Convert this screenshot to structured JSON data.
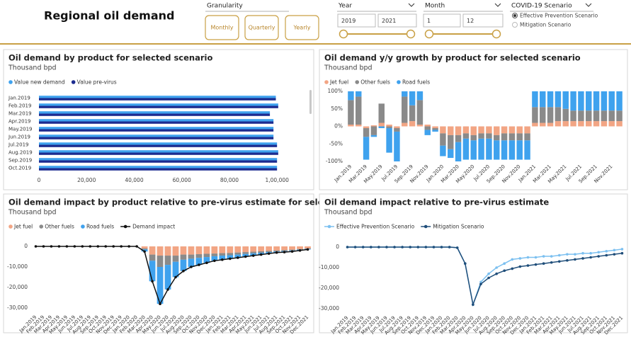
{
  "header": {
    "title": "Regional oil demand",
    "granularity": {
      "label": "Granularity",
      "buttons": [
        "Monthly",
        "Quarterly",
        "Yearly"
      ]
    },
    "year": {
      "label": "Year",
      "from": 2019,
      "to": 2021
    },
    "month": {
      "label": "Month",
      "from": 1,
      "to": 12
    },
    "scenario": {
      "label": "COVID-19 Scenario",
      "options": [
        "Effective Prevention Scenario",
        "Mitigation Scenario"
      ]
    }
  },
  "chart_data": [
    {
      "type": "bar",
      "title": "Oil demand by product for selected scenario",
      "subtitle": "Thousand bpd",
      "categories": [
        "Jan.2019",
        "Feb.2019",
        "Mar.2019",
        "Apr.2019",
        "May.2019",
        "Jun.2019",
        "Jul.2019",
        "Aug.2019",
        "Sep.2019",
        "Oct.2019"
      ],
      "series": [
        {
          "name": "Value new demand",
          "color": "#3fa2ee",
          "values": [
            99500,
            100500,
            97000,
            98500,
            98500,
            98500,
            100000,
            100500,
            100000,
            100000
          ]
        },
        {
          "name": "Value pre-virus",
          "color": "#1c2b8f",
          "values": [
            99500,
            100500,
            97000,
            98500,
            98500,
            98500,
            100000,
            100500,
            100000,
            100000
          ]
        }
      ],
      "xlim": [
        0,
        105000
      ],
      "xticks": [
        0,
        {
          "value": 20000,
          "label": "20,000"
        },
        {
          "value": 40000,
          "label": "40,000"
        },
        {
          "value": 60000,
          "label": "60,000"
        },
        {
          "value": 80000,
          "label": "80,000"
        },
        {
          "value": 100000,
          "label": "1,00,000"
        }
      ]
    },
    {
      "type": "column",
      "title": "Oil demand y/y growth by product for selected scenario",
      "subtitle": "Thousand bpd",
      "categories": [
        "Jan.2019",
        null,
        "Mar.2019",
        null,
        "May.2019",
        null,
        "Jul.2019",
        null,
        "Sep.2019",
        null,
        "Nov.2019",
        null,
        "Jan.2020",
        null,
        "Mar.2020",
        null,
        "May.2020",
        null,
        "Jul.2020",
        null,
        "Sep.2020",
        null,
        "Nov.2020",
        null,
        "Jan.2021",
        null,
        "Mar.2021",
        null,
        "May.2021",
        null,
        "Jul.2021",
        null,
        "Sep.2021",
        null,
        "Nov.2021",
        null
      ],
      "series": [
        {
          "name": "Jet fuel",
          "color": "#f2a584",
          "values": [
            5,
            5,
            -5,
            3,
            10,
            5,
            -5,
            10,
            15,
            5,
            5,
            -5,
            -20,
            -25,
            -25,
            -20,
            -25,
            -20,
            -20,
            -25,
            -20,
            -20,
            -20,
            -20,
            10,
            10,
            10,
            15,
            15,
            15,
            15,
            15,
            15,
            15,
            15,
            15
          ]
        },
        {
          "name": "Other fuels",
          "color": "#8a8a8a",
          "values": [
            70,
            80,
            -25,
            -25,
            55,
            -5,
            -10,
            75,
            45,
            70,
            -10,
            -5,
            -35,
            -40,
            -20,
            -15,
            -15,
            -15,
            -15,
            -15,
            -20,
            -20,
            -20,
            -20,
            45,
            45,
            45,
            40,
            35,
            30,
            30,
            30,
            30,
            30,
            30,
            30
          ]
        },
        {
          "name": "Road fuels",
          "color": "#3fa2ee",
          "values": [
            25,
            15,
            -65,
            -5,
            -5,
            -70,
            -85,
            15,
            40,
            25,
            -15,
            -5,
            -30,
            -25,
            -55,
            -60,
            -55,
            -60,
            -60,
            -55,
            -55,
            -55,
            -55,
            -55,
            45,
            45,
            45,
            45,
            50,
            55,
            55,
            55,
            55,
            55,
            55,
            55
          ]
        }
      ],
      "ylim": [
        -100,
        100
      ],
      "yticks": [
        {
          "value": -100,
          "label": "-100%"
        },
        {
          "value": -50,
          "label": "-50%"
        },
        {
          "value": 0,
          "label": "0%"
        },
        {
          "value": 50,
          "label": "50%"
        },
        {
          "value": 100,
          "label": "100%"
        }
      ]
    },
    {
      "type": "combo",
      "title": "Oil demand impact by product relative to pre-virus estimate for selected scenario",
      "subtitle": "Thousand bpd",
      "categories": [
        "Jan.2019",
        "Feb.2019",
        "Mar.2019",
        "Apr.2019",
        "May.2019",
        "Jun.2019",
        "Jul.2019",
        "Aug.2019",
        "Sep.2019",
        "Oct.2019",
        "Nov.2019",
        "Dec.2019",
        "Jan.2020",
        "Feb.2020",
        "Mar.2020",
        "Apr.2020",
        "May.2020",
        "Jun.2020",
        "Jul.2020",
        "Aug.2020",
        "Sep.2020",
        "Oct.2020",
        "Nov.2020",
        "Dec.2020",
        "Jan.2021",
        "Feb.2021",
        "Mar.2021",
        "Apr.2021",
        "May.2021",
        "Jun.2021",
        "Jul.2021",
        "Aug.2021",
        "Sep.2021",
        "Oct.2021",
        "Nov.2021",
        "Dec.2021"
      ],
      "series": [
        {
          "name": "Jet fuel",
          "type": "bar",
          "color": "#f2a584",
          "values": [
            0,
            0,
            0,
            0,
            0,
            0,
            0,
            0,
            0,
            0,
            0,
            0,
            0,
            0,
            -1000,
            -4000,
            -4500,
            -4500,
            -4500,
            -4000,
            -4000,
            -3800,
            -3600,
            -3500,
            -3300,
            -3200,
            -3000,
            -2800,
            -2600,
            -2400,
            -2200,
            -2000,
            -1800,
            -1600,
            -1300,
            -1000
          ]
        },
        {
          "name": "Other fuels",
          "type": "bar",
          "color": "#8a8a8a",
          "values": [
            0,
            0,
            0,
            0,
            0,
            0,
            0,
            0,
            0,
            0,
            0,
            0,
            0,
            0,
            -500,
            -3000,
            -5500,
            -4500,
            -3000,
            -2500,
            -2000,
            -1800,
            -1600,
            -1300,
            -1200,
            -1100,
            -1000,
            -900,
            -800,
            -700,
            -600,
            -500,
            -500,
            -400,
            -300,
            -200
          ]
        },
        {
          "name": "Road fuels",
          "type": "bar",
          "color": "#3fa2ee",
          "values": [
            0,
            0,
            0,
            0,
            0,
            0,
            0,
            0,
            0,
            0,
            0,
            0,
            0,
            0,
            -1000,
            -10000,
            -18000,
            -12000,
            -7500,
            -5500,
            -4000,
            -3400,
            -2800,
            -2200,
            -2000,
            -1700,
            -1500,
            -1300,
            -1100,
            -900,
            -700,
            -500,
            -500,
            -300,
            -400,
            -300
          ]
        },
        {
          "name": "Demand impact",
          "type": "line",
          "color": "#111111",
          "values": [
            0,
            0,
            0,
            0,
            0,
            0,
            0,
            0,
            0,
            0,
            0,
            0,
            0,
            0,
            -2500,
            -17000,
            -28000,
            -21000,
            -15000,
            -12000,
            -10000,
            -9000,
            -8000,
            -7000,
            -6500,
            -6000,
            -5500,
            -5000,
            -4500,
            -4000,
            -3500,
            -3000,
            -2800,
            -2500,
            -2000,
            -1500
          ]
        }
      ],
      "ylim": [
        -32000,
        2000
      ],
      "yticks": [
        {
          "value": -30000,
          "label": "-30,000"
        },
        {
          "value": -20000,
          "label": "-20,000"
        },
        {
          "value": -10000,
          "label": "-10,000"
        },
        0
      ]
    },
    {
      "type": "line",
      "title": "Oil demand impact relative to pre-virus estimate",
      "subtitle": "Thousand bpd",
      "categories": [
        "Jan.2019",
        "Feb.2019",
        "Mar.2019",
        "Apr.2019",
        "May.2019",
        "Jun.2019",
        "Jul.2019",
        "Aug.2019",
        "Sep.2019",
        "Oct.2019",
        "Nov.2019",
        "Dec.2019",
        "Jan.2020",
        "Feb.2020",
        "Mar.2020",
        "Apr.2020",
        "May.2020",
        "Jun.2020",
        "Jul.2020",
        "Aug.2020",
        "Sep.2020",
        "Oct.2020",
        "Nov.2020",
        "Dec.2020",
        "Jan.2021",
        "Feb.2021",
        "Mar.2021",
        "Apr.2021",
        "May.2021",
        "Jun.2021",
        "Jul.2021",
        "Aug.2021",
        "Sep.2021",
        "Oct.2021",
        "Nov.2021",
        "Dec.2021"
      ],
      "series": [
        {
          "name": "Effective Prevention Scenario",
          "color": "#7cc0f0",
          "values": [
            0,
            0,
            0,
            0,
            0,
            0,
            0,
            0,
            0,
            0,
            0,
            0,
            0,
            0,
            -300,
            -8000,
            -28000,
            -17000,
            -13000,
            -10000,
            -8000,
            -6000,
            -5500,
            -5000,
            -5000,
            -4500,
            -4500,
            -4000,
            -3500,
            -3500,
            -3000,
            -3000,
            -2500,
            -2000,
            -1500,
            -1000
          ]
        },
        {
          "name": "Mitigation Scenario",
          "color": "#1f4e7a",
          "values": [
            0,
            0,
            0,
            0,
            0,
            0,
            0,
            0,
            0,
            0,
            0,
            0,
            0,
            0,
            -300,
            -8000,
            -28000,
            -18000,
            -15000,
            -13000,
            -11500,
            -10500,
            -9500,
            -9000,
            -8500,
            -8000,
            -7500,
            -7000,
            -6500,
            -6000,
            -5500,
            -5000,
            -4500,
            -4000,
            -3500,
            -3000
          ]
        }
      ],
      "ylim": [
        -32000,
        2000
      ],
      "yticks": [
        {
          "value": -30000,
          "label": "-30,000"
        },
        {
          "value": -20000,
          "label": "-20,000"
        },
        {
          "value": -10000,
          "label": "-10,000"
        },
        0
      ]
    }
  ]
}
